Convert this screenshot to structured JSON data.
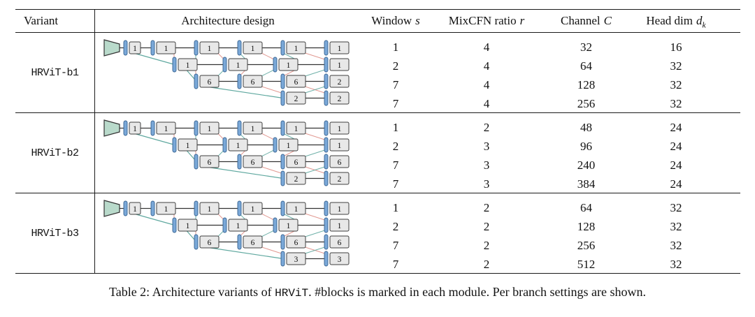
{
  "header": {
    "variant": "Variant",
    "arch": "Architecture design",
    "window": {
      "label": "Window",
      "var": "s"
    },
    "mixcfn": {
      "label": "MixCFN ratio",
      "var": "r"
    },
    "channel": {
      "label": "Channel",
      "var": "C"
    },
    "headdim": {
      "label": "Head dim",
      "var": "d",
      "sub": "k"
    }
  },
  "table": {
    "variants": [
      {
        "name": "HRViT-b1",
        "stem_blocks": "1",
        "branches": [
          [
            "1",
            "1",
            "1",
            "1",
            "1"
          ],
          [
            "1",
            "1",
            "1",
            "1"
          ],
          [
            "6",
            "6",
            "6",
            "2"
          ],
          [
            "2",
            "2"
          ]
        ],
        "rows": [
          {
            "window": "1",
            "mixcfn": "4",
            "channel": "32",
            "headdim": "16"
          },
          {
            "window": "2",
            "mixcfn": "4",
            "channel": "64",
            "headdim": "32"
          },
          {
            "window": "7",
            "mixcfn": "4",
            "channel": "128",
            "headdim": "32"
          },
          {
            "window": "7",
            "mixcfn": "4",
            "channel": "256",
            "headdim": "32"
          }
        ]
      },
      {
        "name": "HRViT-b2",
        "stem_blocks": "1",
        "branches": [
          [
            "1",
            "1",
            "1",
            "1",
            "1"
          ],
          [
            "1",
            "1",
            "1",
            "1"
          ],
          [
            "6",
            "6",
            "6",
            "6"
          ],
          [
            "2",
            "2"
          ]
        ],
        "rows": [
          {
            "window": "1",
            "mixcfn": "2",
            "channel": "48",
            "headdim": "24"
          },
          {
            "window": "2",
            "mixcfn": "3",
            "channel": "96",
            "headdim": "24"
          },
          {
            "window": "7",
            "mixcfn": "3",
            "channel": "240",
            "headdim": "24"
          },
          {
            "window": "7",
            "mixcfn": "3",
            "channel": "384",
            "headdim": "24"
          }
        ]
      },
      {
        "name": "HRViT-b3",
        "stem_blocks": "1",
        "branches": [
          [
            "1",
            "1",
            "1",
            "1",
            "1"
          ],
          [
            "1",
            "1",
            "1",
            "1"
          ],
          [
            "6",
            "6",
            "6",
            "6"
          ],
          [
            "3",
            "3"
          ]
        ],
        "rows": [
          {
            "window": "1",
            "mixcfn": "2",
            "channel": "64",
            "headdim": "32"
          },
          {
            "window": "2",
            "mixcfn": "2",
            "channel": "128",
            "headdim": "32"
          },
          {
            "window": "7",
            "mixcfn": "2",
            "channel": "256",
            "headdim": "32"
          },
          {
            "window": "7",
            "mixcfn": "2",
            "channel": "512",
            "headdim": "32"
          }
        ]
      }
    ]
  },
  "diagram_colors": {
    "stem": "#b9dacb",
    "bar": "#7aa8d8",
    "bar_stroke": "#35618f",
    "box": "#e8e8e8",
    "box_stroke": "#3f3f3f",
    "line": "#333333",
    "red": "#de8d85",
    "teal": "#5fa89f"
  },
  "caption": {
    "prefix": "Table 2: Architecture variants of ",
    "code": "HRViT",
    "suffix": ". #blocks is marked in each module. Per branch settings are shown."
  }
}
